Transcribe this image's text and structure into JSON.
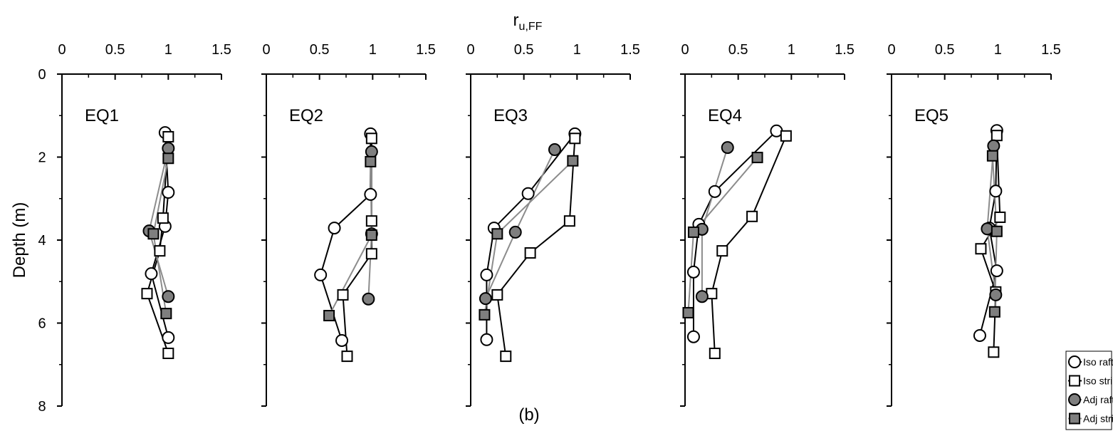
{
  "chart_data": [
    {
      "type": "line",
      "title": "EQ1",
      "ylabel": "Depth (m)",
      "show_ytick_labels": true,
      "xlim": [
        0,
        1.5
      ],
      "xticks": [
        0,
        0.5,
        1,
        1.5
      ],
      "xminor": [
        0.25,
        0.75,
        1.25
      ],
      "ylim": [
        8,
        0
      ],
      "yticks": [
        0,
        2,
        4,
        6,
        8
      ],
      "yminor": [
        1,
        3,
        5,
        7
      ],
      "series": [
        {
          "name": "Iso raft",
          "color": "#000000",
          "fill": "#ffffff",
          "marker": "circle",
          "x": [
            0.97,
            1.0,
            0.97,
            0.84,
            1.0
          ],
          "values": [
            1.41,
            2.85,
            3.67,
            4.81,
            6.35
          ]
        },
        {
          "name": "Iso strip",
          "color": "#000000",
          "fill": "#ffffff",
          "marker": "square",
          "x": [
            1.0,
            0.95,
            0.92,
            0.8,
            1.0
          ],
          "values": [
            1.51,
            3.47,
            4.26,
            5.29,
            6.73
          ]
        },
        {
          "name": "Adj raft",
          "color": "#8c8c8c",
          "fill": "#7f7f7f",
          "marker": "circle",
          "x": [
            1.0,
            0.82,
            1.0
          ],
          "values": [
            1.79,
            3.78,
            5.36
          ]
        },
        {
          "name": "Adj strip",
          "color": "#8c8c8c",
          "fill": "#7f7f7f",
          "marker": "square",
          "x": [
            1.0,
            0.86,
            0.98
          ],
          "values": [
            2.03,
            3.85,
            5.77
          ]
        }
      ]
    },
    {
      "type": "line",
      "title": "EQ2",
      "show_ytick_labels": false,
      "xlim": [
        0,
        1.5
      ],
      "xticks": [
        0,
        0.5,
        1,
        1.5
      ],
      "xminor": [
        0.25,
        0.75,
        1.25
      ],
      "ylim": [
        8,
        0
      ],
      "yticks": [
        0,
        2,
        4,
        6,
        8
      ],
      "yminor": [
        1,
        3,
        5,
        7
      ],
      "series": [
        {
          "name": "Iso raft",
          "color": "#000000",
          "fill": "#ffffff",
          "marker": "circle",
          "x": [
            0.98,
            0.98,
            0.64,
            0.51,
            0.71
          ],
          "values": [
            1.44,
            2.9,
            3.71,
            4.84,
            6.42
          ]
        },
        {
          "name": "Iso strip",
          "color": "#000000",
          "fill": "#ffffff",
          "marker": "square",
          "x": [
            0.99,
            0.99,
            0.99,
            0.72,
            0.76
          ],
          "values": [
            1.55,
            3.54,
            4.33,
            5.32,
            6.8
          ]
        },
        {
          "name": "Adj raft",
          "color": "#8c8c8c",
          "fill": "#7f7f7f",
          "marker": "circle",
          "x": [
            0.99,
            0.99,
            0.96
          ],
          "values": [
            1.87,
            3.85,
            5.42
          ]
        },
        {
          "name": "Adj strip",
          "color": "#8c8c8c",
          "fill": "#7f7f7f",
          "marker": "square",
          "x": [
            0.98,
            0.99,
            0.59
          ],
          "values": [
            2.11,
            3.88,
            5.82
          ]
        }
      ]
    },
    {
      "type": "line",
      "title": "EQ3",
      "show_ytick_labels": false,
      "xlabel": "r",
      "xlabel_sub": "u,FF",
      "caption": "(b)",
      "xlim": [
        0,
        1.5
      ],
      "xticks": [
        0,
        0.5,
        1,
        1.5
      ],
      "xminor": [
        0.25,
        0.75,
        1.25
      ],
      "ylim": [
        8,
        0
      ],
      "yticks": [
        0,
        2,
        4,
        6,
        8
      ],
      "yminor": [
        1,
        3,
        5,
        7
      ],
      "series": [
        {
          "name": "Iso raft",
          "color": "#000000",
          "fill": "#ffffff",
          "marker": "circle",
          "x": [
            0.98,
            0.54,
            0.22,
            0.15,
            0.15
          ],
          "values": [
            1.44,
            2.88,
            3.71,
            4.84,
            6.4
          ]
        },
        {
          "name": "Iso strip",
          "color": "#000000",
          "fill": "#ffffff",
          "marker": "square",
          "x": [
            0.98,
            0.93,
            0.56,
            0.25,
            0.33
          ],
          "values": [
            1.55,
            3.54,
            4.31,
            5.32,
            6.8
          ]
        },
        {
          "name": "Adj raft",
          "color": "#8c8c8c",
          "fill": "#7f7f7f",
          "marker": "circle",
          "x": [
            0.79,
            0.42,
            0.14
          ],
          "values": [
            1.82,
            3.81,
            5.41
          ]
        },
        {
          "name": "Adj strip",
          "color": "#8c8c8c",
          "fill": "#7f7f7f",
          "marker": "square",
          "x": [
            0.96,
            0.25,
            0.13
          ],
          "values": [
            2.09,
            3.85,
            5.8
          ]
        }
      ]
    },
    {
      "type": "line",
      "title": "EQ4",
      "show_ytick_labels": false,
      "xlim": [
        0,
        1.5
      ],
      "xticks": [
        0,
        0.5,
        1,
        1.5
      ],
      "xminor": [
        0.25,
        0.75,
        1.25
      ],
      "ylim": [
        8,
        0
      ],
      "yticks": [
        0,
        2,
        4,
        6,
        8
      ],
      "yminor": [
        1,
        3,
        5,
        7
      ],
      "series": [
        {
          "name": "Iso raft",
          "color": "#000000",
          "fill": "#ffffff",
          "marker": "circle",
          "x": [
            0.86,
            0.28,
            0.13,
            0.08,
            0.08
          ],
          "values": [
            1.37,
            2.83,
            3.62,
            4.77,
            6.33
          ]
        },
        {
          "name": "Iso strip",
          "color": "#000000",
          "fill": "#ffffff",
          "marker": "square",
          "x": [
            0.95,
            0.63,
            0.35,
            0.25,
            0.28
          ],
          "values": [
            1.49,
            3.43,
            4.26,
            5.29,
            6.73
          ]
        },
        {
          "name": "Adj raft",
          "color": "#8c8c8c",
          "fill": "#7f7f7f",
          "marker": "circle",
          "x": [
            0.4,
            0.16,
            0.16
          ],
          "values": [
            1.77,
            3.74,
            5.36
          ]
        },
        {
          "name": "Adj strip",
          "color": "#8c8c8c",
          "fill": "#7f7f7f",
          "marker": "square",
          "x": [
            0.68,
            0.08,
            0.03
          ],
          "values": [
            2.01,
            3.81,
            5.75
          ]
        }
      ]
    },
    {
      "type": "line",
      "title": "EQ5",
      "show_ytick_labels": false,
      "legend": "lower right",
      "xlim": [
        0,
        1.5
      ],
      "xticks": [
        0,
        0.5,
        1,
        1.5
      ],
      "xminor": [
        0.25,
        0.75,
        1.25
      ],
      "ylim": [
        8,
        0
      ],
      "yticks": [
        0,
        2,
        4,
        6,
        8
      ],
      "yminor": [
        1,
        3,
        5,
        7
      ],
      "series": [
        {
          "name": "Iso raft",
          "color": "#000000",
          "fill": "#ffffff",
          "marker": "circle",
          "x": [
            0.99,
            0.98,
            0.92,
            0.99,
            0.83
          ],
          "values": [
            1.36,
            2.82,
            3.71,
            4.74,
            6.3
          ]
        },
        {
          "name": "Iso strip",
          "color": "#000000",
          "fill": "#ffffff",
          "marker": "square",
          "x": [
            0.99,
            1.02,
            0.84,
            0.98,
            0.96
          ],
          "values": [
            1.48,
            3.45,
            4.21,
            5.25,
            6.7
          ]
        },
        {
          "name": "Adj raft",
          "color": "#8c8c8c",
          "fill": "#7f7f7f",
          "marker": "circle",
          "x": [
            0.96,
            0.9,
            0.98
          ],
          "values": [
            1.73,
            3.73,
            5.32
          ]
        },
        {
          "name": "Adj strip",
          "color": "#8c8c8c",
          "fill": "#7f7f7f",
          "marker": "square",
          "x": [
            0.95,
            0.99,
            0.97
          ],
          "values": [
            1.97,
            3.79,
            5.73
          ]
        }
      ]
    }
  ]
}
